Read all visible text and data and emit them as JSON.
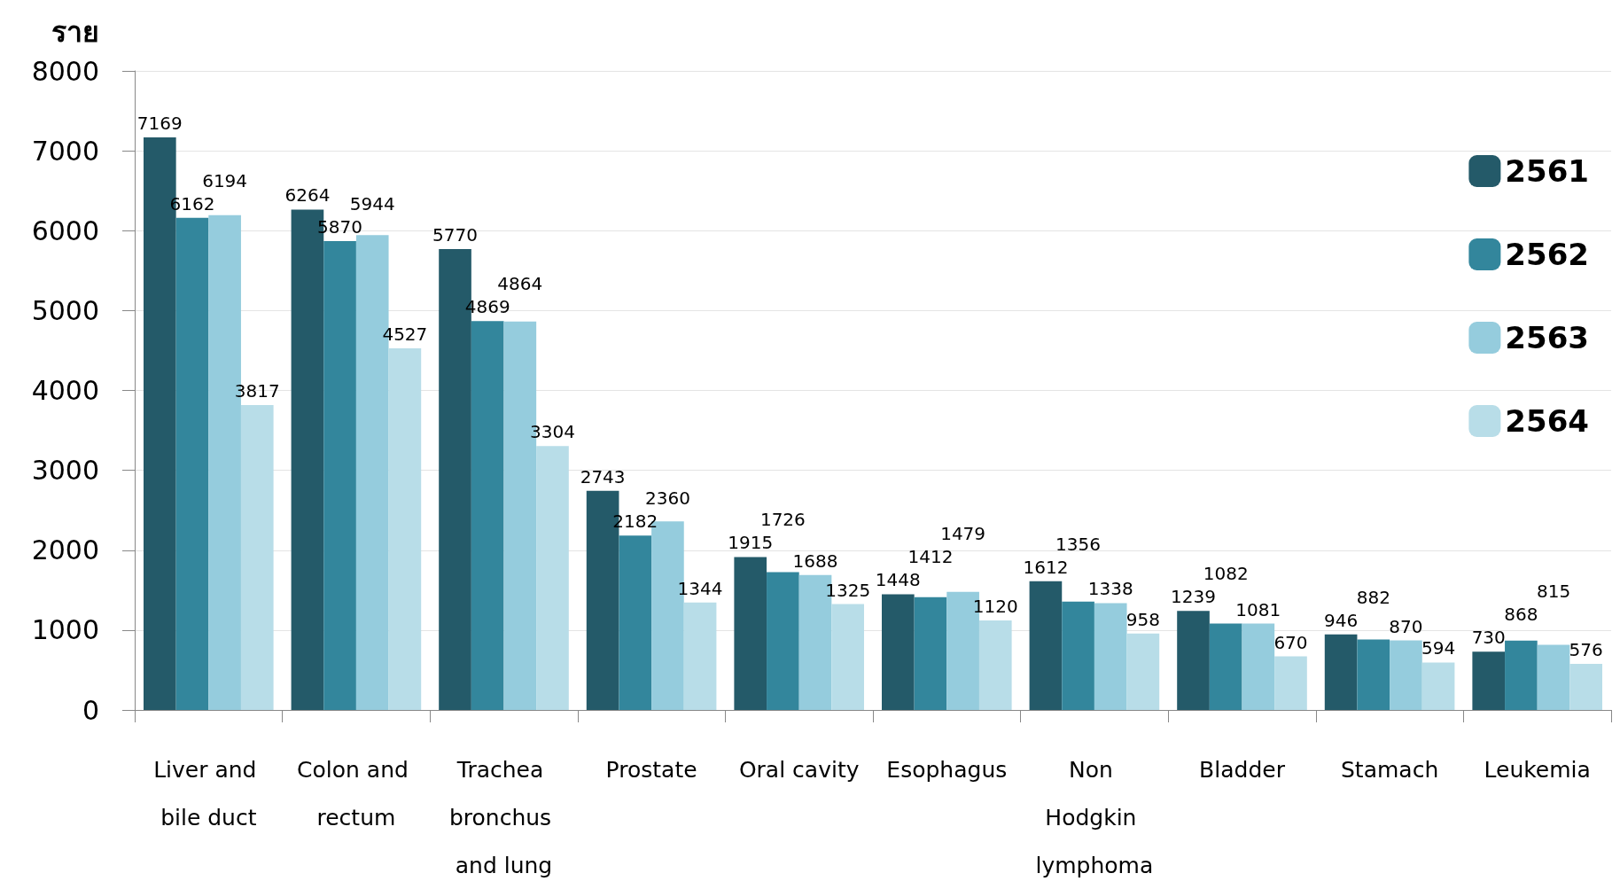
{
  "chart_data": {
    "type": "bar",
    "ylabel": "ราย",
    "categories": [
      "Liver and bile duct",
      "Colon and rectum",
      "Trachea bronchus and lung",
      "Prostate",
      "Oral cavity",
      "Esophagus",
      "Non Hodgkin lymphoma",
      "Bladder",
      "Stamach",
      "Leukemia"
    ],
    "series": [
      {
        "name": "2561",
        "color": "#245a69",
        "values": [
          7169,
          6264,
          5770,
          2743,
          1915,
          1448,
          1612,
          1239,
          946,
          730
        ]
      },
      {
        "name": "2562",
        "color": "#33869c",
        "values": [
          6162,
          5870,
          4869,
          2182,
          1726,
          1412,
          1356,
          1082,
          882,
          868
        ]
      },
      {
        "name": "2563",
        "color": "#95ccdd",
        "values": [
          6194,
          5944,
          4864,
          2360,
          1688,
          1479,
          1338,
          1081,
          870,
          815
        ]
      },
      {
        "name": "2564",
        "color": "#b8dde8",
        "values": [
          3817,
          4527,
          3304,
          1344,
          1325,
          1120,
          958,
          670,
          594,
          576
        ]
      }
    ],
    "ylim": [
      0,
      8000
    ],
    "yticks": [
      0,
      1000,
      2000,
      3000,
      4000,
      5000,
      6000,
      7000,
      8000
    ],
    "grid": "y",
    "legend": "right",
    "data_labels": true
  }
}
